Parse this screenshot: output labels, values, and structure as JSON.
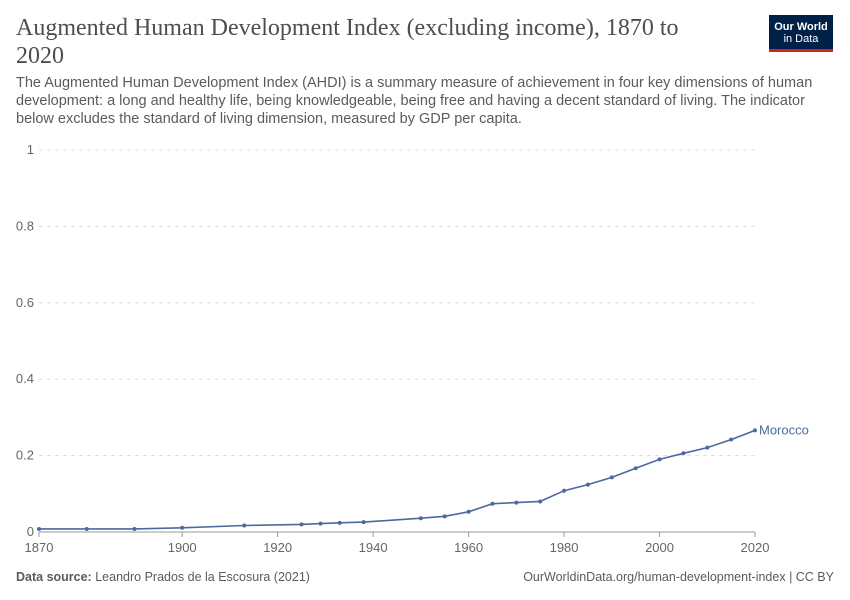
{
  "header": {
    "title": "Augmented Human Development Index (excluding income), 1870 to 2020",
    "subtitle": "The Augmented Human Development Index (AHDI) is a summary measure of achievement in four key dimensions of human development: a long and healthy life, being knowledgeable, being free and having a decent standard of living. The indicator below excludes the standard of living dimension, measured by GDP per capita.",
    "logo_line1": "Our World",
    "logo_line2": "in Data"
  },
  "footer": {
    "source_label": "Data source:",
    "source_text": "Leandro Prados de la Escosura (2021)",
    "url": "OurWorldinData.org/human-development-index | CC BY"
  },
  "colors": {
    "series": "#4c6a9c",
    "grid": "#dddddd",
    "axis": "#666666",
    "logo_bg": "#002147",
    "logo_accent": "#ce261e"
  },
  "chart_data": {
    "type": "line",
    "title": "Augmented Human Development Index (excluding income), 1870 to 2020",
    "xlim": [
      1870,
      2020
    ],
    "ylim": [
      0,
      1
    ],
    "x_ticks": [
      1870,
      1900,
      1920,
      1940,
      1960,
      1980,
      2000,
      2020
    ],
    "y_ticks": [
      0,
      0.2,
      0.4,
      0.6,
      0.8,
      1
    ],
    "y_tick_labels": [
      "0",
      "0.2",
      "0.4",
      "0.6",
      "0.8",
      "1"
    ],
    "grid": "horizontal dashed",
    "series": [
      {
        "name": "Morocco",
        "x": [
          1870,
          1880,
          1890,
          1900,
          1913,
          1925,
          1929,
          1933,
          1938,
          1950,
          1955,
          1960,
          1965,
          1970,
          1975,
          1980,
          1985,
          1990,
          1995,
          2000,
          2005,
          2010,
          2015,
          2020
        ],
        "y": [
          0.008,
          0.008,
          0.008,
          0.011,
          0.017,
          0.02,
          0.022,
          0.024,
          0.026,
          0.036,
          0.041,
          0.053,
          0.074,
          0.077,
          0.08,
          0.108,
          0.124,
          0.143,
          0.167,
          0.19,
          0.206,
          0.221,
          0.242,
          0.266
        ]
      }
    ]
  }
}
